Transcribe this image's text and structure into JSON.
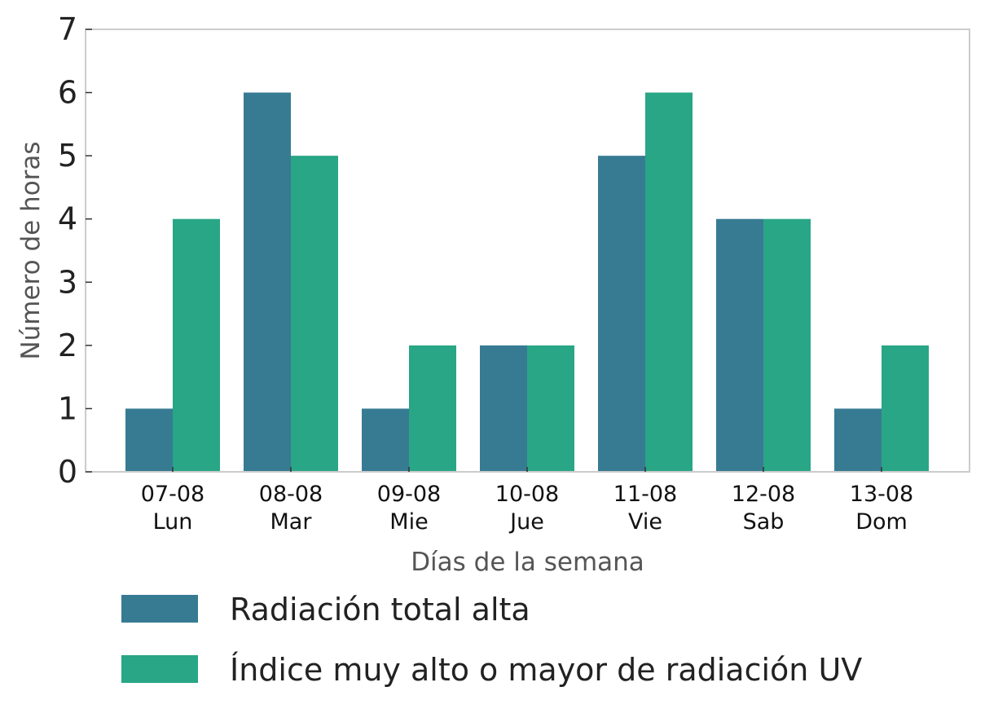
{
  "chart_data": {
    "type": "bar",
    "title": "",
    "xlabel": "Días de la semana",
    "ylabel": "Número de horas",
    "categories": [
      [
        "07-08",
        "Lun"
      ],
      [
        "08-08",
        "Mar"
      ],
      [
        "09-08",
        "Mie"
      ],
      [
        "10-08",
        "Jue"
      ],
      [
        "11-08",
        "Vie"
      ],
      [
        "12-08",
        "Sab"
      ],
      [
        "13-08",
        "Dom"
      ]
    ],
    "series": [
      {
        "name": "Radiación total alta",
        "color": "#377b93",
        "values": [
          1,
          6,
          1,
          2,
          5,
          4,
          1
        ]
      },
      {
        "name": "Índice muy alto o mayor de radiación UV",
        "color": "#28a685",
        "values": [
          4,
          5,
          2,
          2,
          6,
          4,
          2
        ]
      }
    ],
    "ylim": [
      0,
      7
    ],
    "yticks": [
      0,
      1,
      2,
      3,
      4,
      5,
      6,
      7
    ],
    "grid": false,
    "legend_position": "bottom-left"
  }
}
